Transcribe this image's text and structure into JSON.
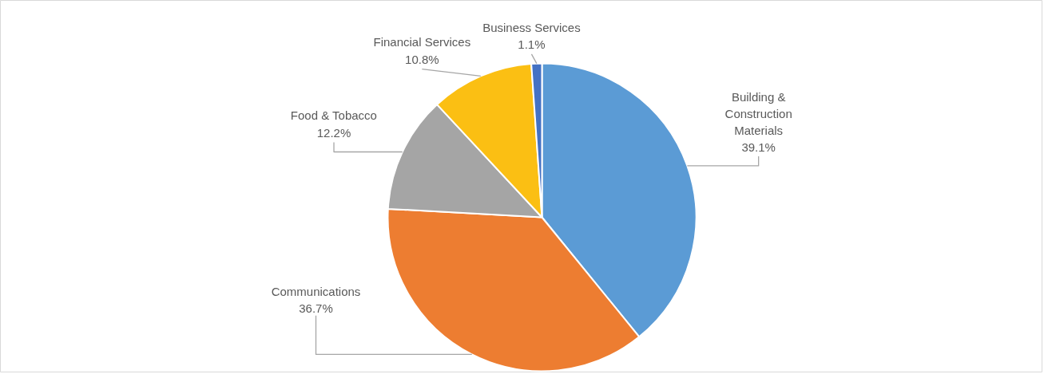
{
  "chart_data": {
    "type": "pie",
    "categories": [
      "Building & Construction Materials",
      "Communications",
      "Food & Tobacco",
      "Financial Services",
      "Business Services"
    ],
    "values": [
      39.1,
      36.7,
      12.2,
      10.8,
      1.1
    ],
    "value_labels": [
      "39.1%",
      "36.7%",
      "12.2%",
      "10.8%",
      "1.1%"
    ],
    "colors": [
      "#5b9bd5",
      "#ed7d31",
      "#a5a5a5",
      "#fbbf13",
      "#4472c4"
    ],
    "legend": false
  }
}
